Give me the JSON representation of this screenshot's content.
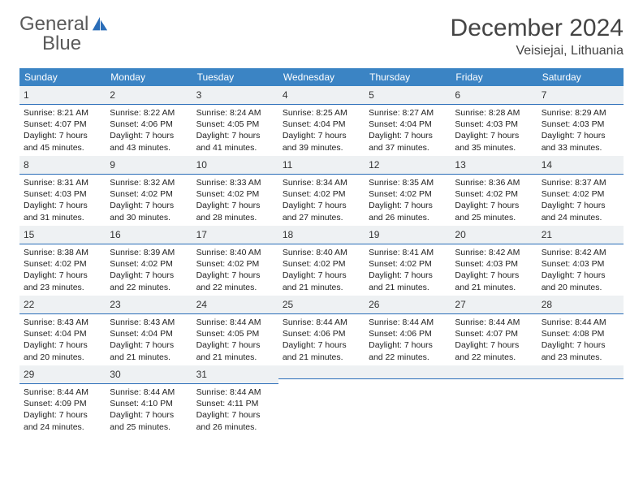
{
  "brand": {
    "word1": "General",
    "word2": "Blue"
  },
  "title": "December 2024",
  "location": "Veisiejai, Lithuania",
  "colors": {
    "header_bg": "#3b84c4",
    "header_text": "#ffffff",
    "daynum_bg": "#eef1f3",
    "daynum_border": "#2a6db8",
    "logo_gray": "#5a5a5a",
    "logo_blue": "#2a6db8",
    "text": "#222222"
  },
  "weekdays": [
    "Sunday",
    "Monday",
    "Tuesday",
    "Wednesday",
    "Thursday",
    "Friday",
    "Saturday"
  ],
  "weeks": [
    [
      {
        "n": "1",
        "sunrise": "8:21 AM",
        "sunset": "4:07 PM",
        "daylight": "7 hours and 45 minutes."
      },
      {
        "n": "2",
        "sunrise": "8:22 AM",
        "sunset": "4:06 PM",
        "daylight": "7 hours and 43 minutes."
      },
      {
        "n": "3",
        "sunrise": "8:24 AM",
        "sunset": "4:05 PM",
        "daylight": "7 hours and 41 minutes."
      },
      {
        "n": "4",
        "sunrise": "8:25 AM",
        "sunset": "4:04 PM",
        "daylight": "7 hours and 39 minutes."
      },
      {
        "n": "5",
        "sunrise": "8:27 AM",
        "sunset": "4:04 PM",
        "daylight": "7 hours and 37 minutes."
      },
      {
        "n": "6",
        "sunrise": "8:28 AM",
        "sunset": "4:03 PM",
        "daylight": "7 hours and 35 minutes."
      },
      {
        "n": "7",
        "sunrise": "8:29 AM",
        "sunset": "4:03 PM",
        "daylight": "7 hours and 33 minutes."
      }
    ],
    [
      {
        "n": "8",
        "sunrise": "8:31 AM",
        "sunset": "4:03 PM",
        "daylight": "7 hours and 31 minutes."
      },
      {
        "n": "9",
        "sunrise": "8:32 AM",
        "sunset": "4:02 PM",
        "daylight": "7 hours and 30 minutes."
      },
      {
        "n": "10",
        "sunrise": "8:33 AM",
        "sunset": "4:02 PM",
        "daylight": "7 hours and 28 minutes."
      },
      {
        "n": "11",
        "sunrise": "8:34 AM",
        "sunset": "4:02 PM",
        "daylight": "7 hours and 27 minutes."
      },
      {
        "n": "12",
        "sunrise": "8:35 AM",
        "sunset": "4:02 PM",
        "daylight": "7 hours and 26 minutes."
      },
      {
        "n": "13",
        "sunrise": "8:36 AM",
        "sunset": "4:02 PM",
        "daylight": "7 hours and 25 minutes."
      },
      {
        "n": "14",
        "sunrise": "8:37 AM",
        "sunset": "4:02 PM",
        "daylight": "7 hours and 24 minutes."
      }
    ],
    [
      {
        "n": "15",
        "sunrise": "8:38 AM",
        "sunset": "4:02 PM",
        "daylight": "7 hours and 23 minutes."
      },
      {
        "n": "16",
        "sunrise": "8:39 AM",
        "sunset": "4:02 PM",
        "daylight": "7 hours and 22 minutes."
      },
      {
        "n": "17",
        "sunrise": "8:40 AM",
        "sunset": "4:02 PM",
        "daylight": "7 hours and 22 minutes."
      },
      {
        "n": "18",
        "sunrise": "8:40 AM",
        "sunset": "4:02 PM",
        "daylight": "7 hours and 21 minutes."
      },
      {
        "n": "19",
        "sunrise": "8:41 AM",
        "sunset": "4:02 PM",
        "daylight": "7 hours and 21 minutes."
      },
      {
        "n": "20",
        "sunrise": "8:42 AM",
        "sunset": "4:03 PM",
        "daylight": "7 hours and 21 minutes."
      },
      {
        "n": "21",
        "sunrise": "8:42 AM",
        "sunset": "4:03 PM",
        "daylight": "7 hours and 20 minutes."
      }
    ],
    [
      {
        "n": "22",
        "sunrise": "8:43 AM",
        "sunset": "4:04 PM",
        "daylight": "7 hours and 20 minutes."
      },
      {
        "n": "23",
        "sunrise": "8:43 AM",
        "sunset": "4:04 PM",
        "daylight": "7 hours and 21 minutes."
      },
      {
        "n": "24",
        "sunrise": "8:44 AM",
        "sunset": "4:05 PM",
        "daylight": "7 hours and 21 minutes."
      },
      {
        "n": "25",
        "sunrise": "8:44 AM",
        "sunset": "4:06 PM",
        "daylight": "7 hours and 21 minutes."
      },
      {
        "n": "26",
        "sunrise": "8:44 AM",
        "sunset": "4:06 PM",
        "daylight": "7 hours and 22 minutes."
      },
      {
        "n": "27",
        "sunrise": "8:44 AM",
        "sunset": "4:07 PM",
        "daylight": "7 hours and 22 minutes."
      },
      {
        "n": "28",
        "sunrise": "8:44 AM",
        "sunset": "4:08 PM",
        "daylight": "7 hours and 23 minutes."
      }
    ],
    [
      {
        "n": "29",
        "sunrise": "8:44 AM",
        "sunset": "4:09 PM",
        "daylight": "7 hours and 24 minutes."
      },
      {
        "n": "30",
        "sunrise": "8:44 AM",
        "sunset": "4:10 PM",
        "daylight": "7 hours and 25 minutes."
      },
      {
        "n": "31",
        "sunrise": "8:44 AM",
        "sunset": "4:11 PM",
        "daylight": "7 hours and 26 minutes."
      },
      null,
      null,
      null,
      null
    ]
  ],
  "labels": {
    "sunrise": "Sunrise: ",
    "sunset": "Sunset: ",
    "daylight": "Daylight: "
  }
}
